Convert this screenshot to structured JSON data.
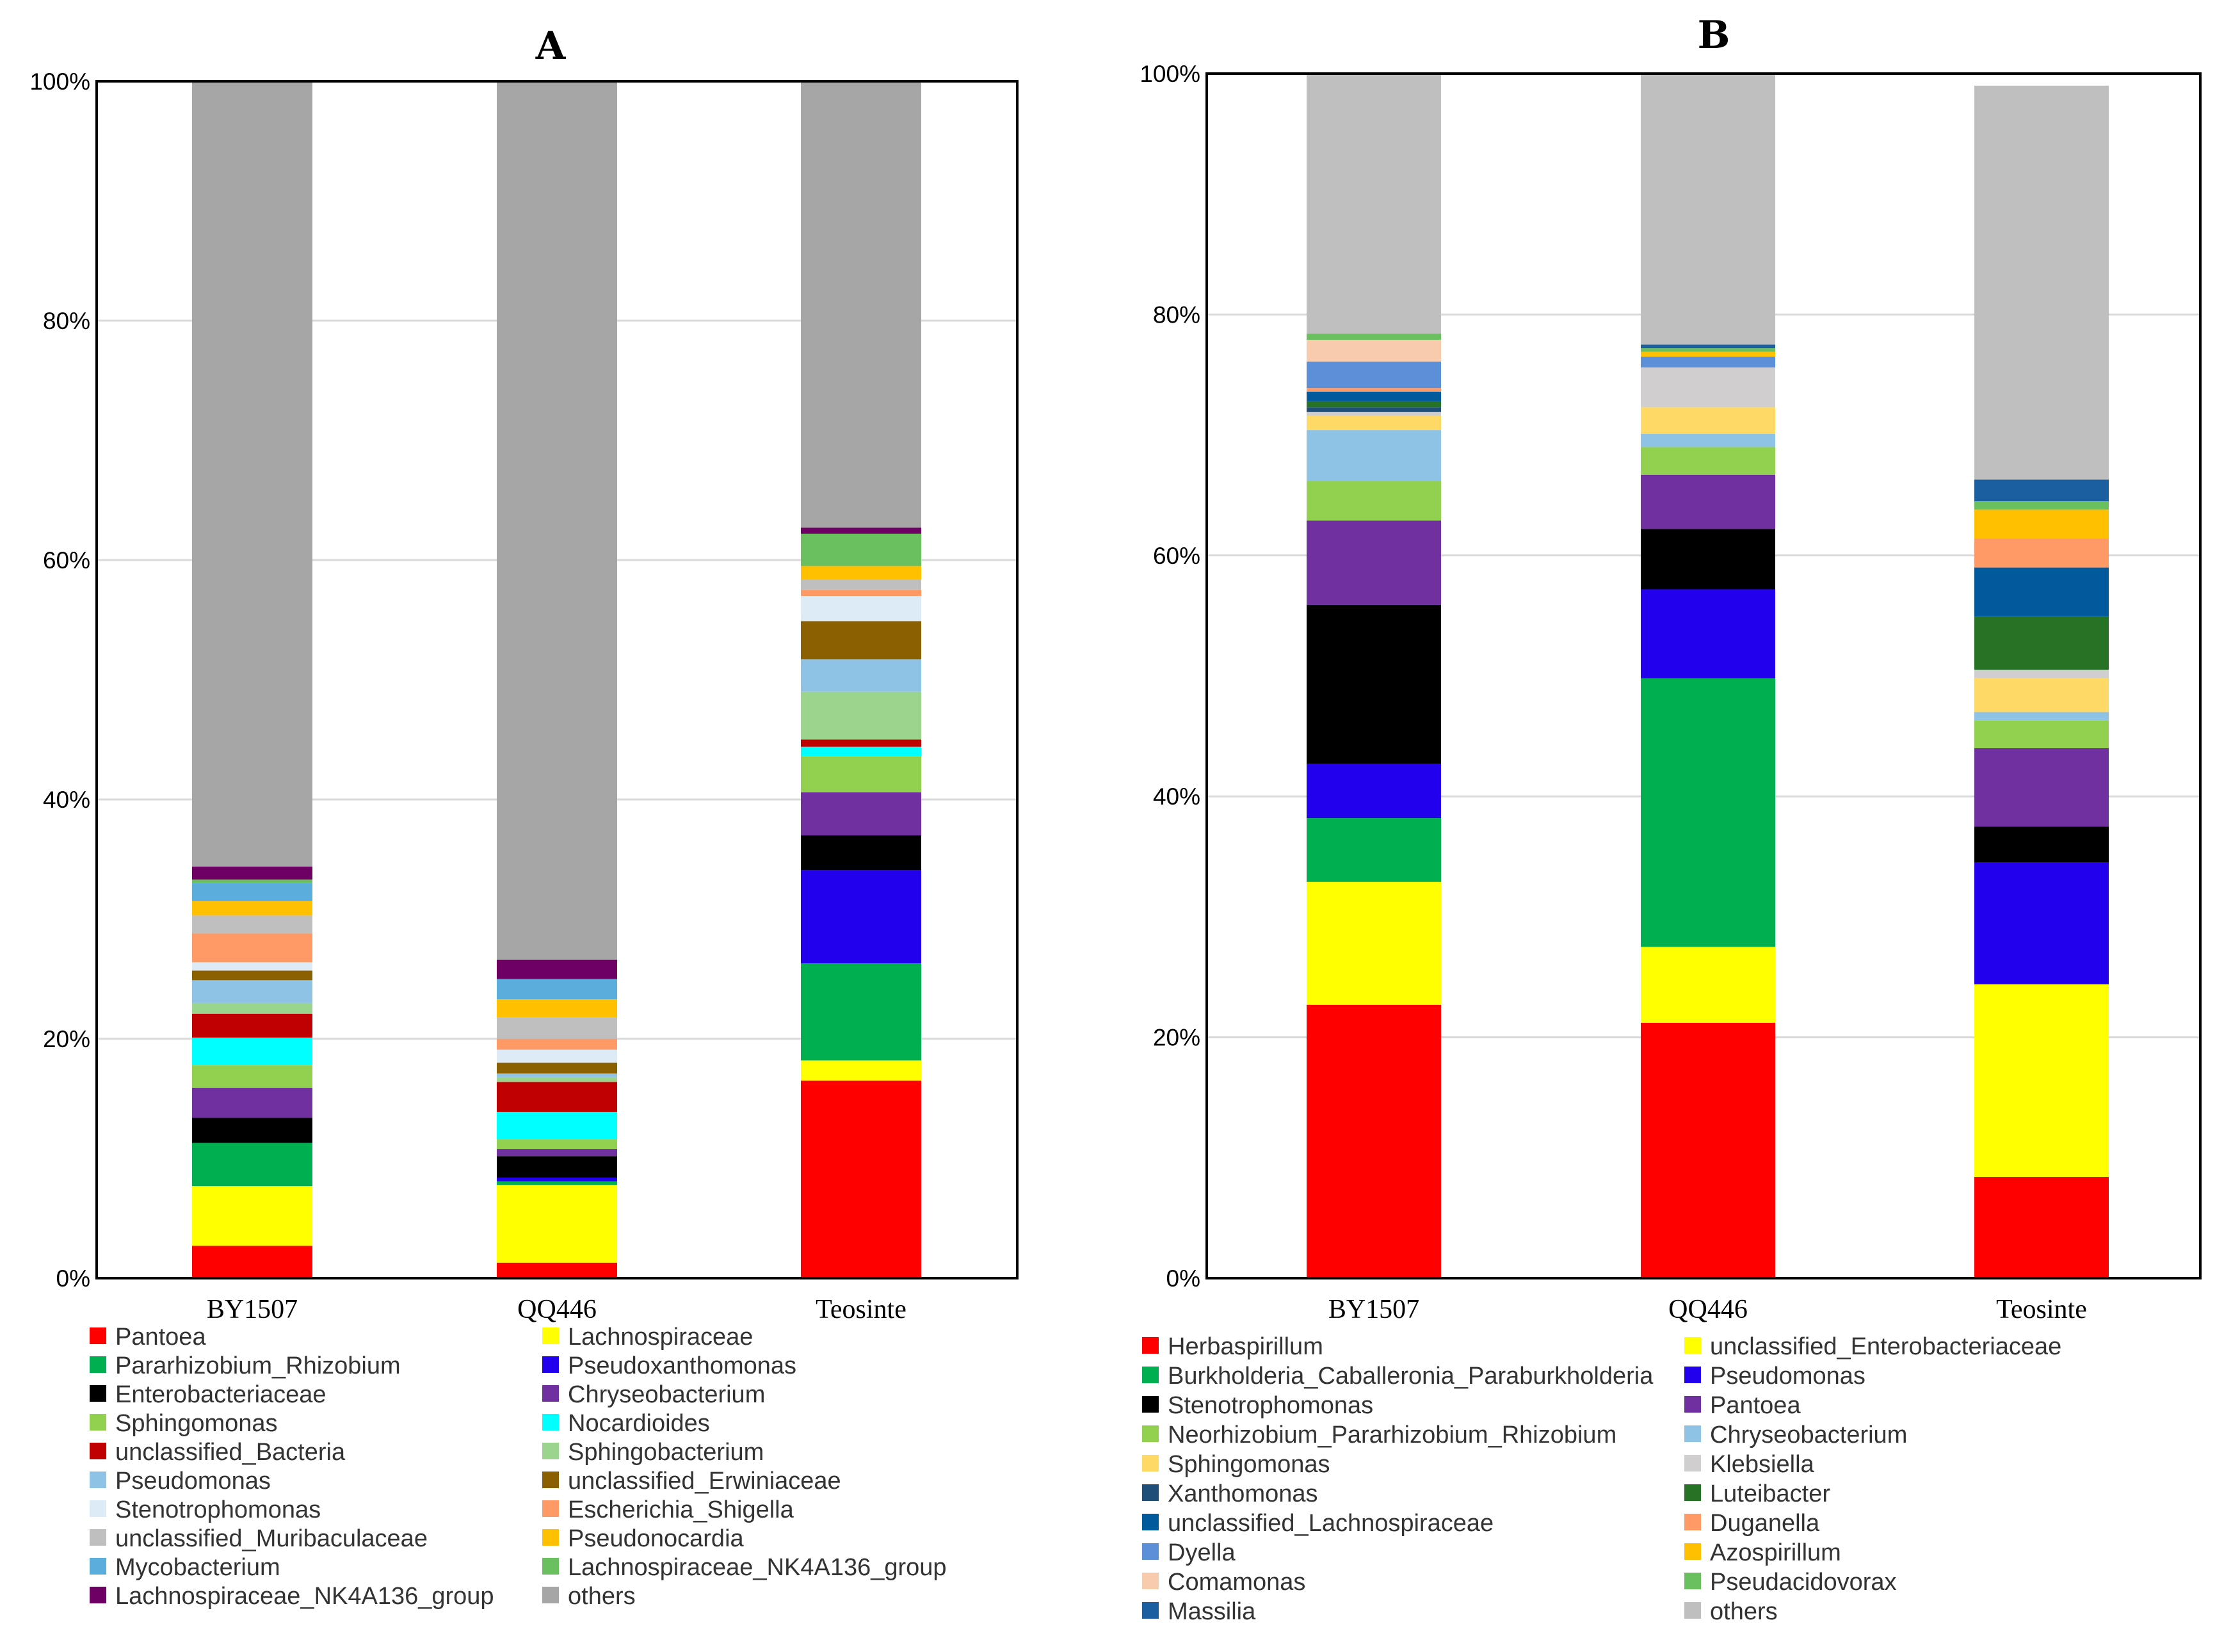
{
  "chart_data": [
    {
      "id": "A",
      "type": "bar",
      "stacked": true,
      "percent": true,
      "title": "A",
      "xlabel": "",
      "ylabel": "",
      "ylim": [
        0,
        100
      ],
      "yticks": [
        "0%",
        "20%",
        "40%",
        "60%",
        "80%",
        "100%"
      ],
      "categories": [
        "BY1507",
        "QQ446",
        "Teosinte"
      ],
      "grid": true,
      "legend_position": "bottom",
      "series": [
        {
          "name": "Pantoea",
          "color": "#FF0000",
          "values": [
            2.7,
            1.3,
            16.5
          ]
        },
        {
          "name": "Lachnospiraceae",
          "color": "#FFFF00",
          "values": [
            5.0,
            6.5,
            1.7
          ]
        },
        {
          "name": "Pararhizobium_Rhizobium",
          "color": "#00B050",
          "values": [
            3.6,
            0.3,
            8.1
          ]
        },
        {
          "name": "Pseudoxanthomonas",
          "color": "#2200EE",
          "values": [
            0.0,
            0.3,
            7.8
          ]
        },
        {
          "name": "Enterobacteriaceae",
          "color": "#000000",
          "values": [
            2.1,
            1.8,
            2.9
          ]
        },
        {
          "name": "Chryseobacterium",
          "color": "#7030A0",
          "values": [
            2.5,
            0.6,
            3.6
          ]
        },
        {
          "name": "Sphingomonas",
          "color": "#92D050",
          "values": [
            1.9,
            0.8,
            3.0
          ]
        },
        {
          "name": "Nocardioides",
          "color": "#00FFFF",
          "values": [
            2.3,
            2.3,
            0.8
          ]
        },
        {
          "name": "unclassified_Bacteria",
          "color": "#C00000",
          "values": [
            2.0,
            2.5,
            0.6
          ]
        },
        {
          "name": "Sphingobacterium",
          "color": "#9BD48C",
          "values": [
            0.9,
            0.4,
            4.0
          ]
        },
        {
          "name": "Pseudomonas",
          "color": "#8EC3E6",
          "values": [
            1.9,
            0.3,
            2.7
          ]
        },
        {
          "name": "unclassified_Erwiniaceae",
          "color": "#8B6000",
          "values": [
            0.8,
            0.9,
            3.2
          ]
        },
        {
          "name": "Stenotrophomonas",
          "color": "#DDEBF7",
          "values": [
            0.7,
            1.1,
            2.1
          ]
        },
        {
          "name": "Escherichia_Shigella",
          "color": "#FF9966",
          "values": [
            2.4,
            0.9,
            0.5
          ]
        },
        {
          "name": "unclassified_Muribaculaceae",
          "color": "#BFBFBF",
          "values": [
            1.5,
            1.8,
            0.9
          ]
        },
        {
          "name": "Pseudonocardia",
          "color": "#FFC000",
          "values": [
            1.2,
            1.5,
            1.1
          ]
        },
        {
          "name": "Mycobacterium",
          "color": "#5BAEDC",
          "values": [
            1.5,
            1.7,
            0.0
          ]
        },
        {
          "name": "Lachnospiraceae_NK4A136_group",
          "color": "#6ABF5E",
          "values": [
            0.3,
            0.0,
            2.7
          ]
        },
        {
          "name": "Lachnospiraceae_NK4A136_group",
          "color": "#6E0063",
          "values": [
            1.1,
            1.6,
            0.5
          ]
        },
        {
          "name": "others",
          "color": "#A6A6A6",
          "values": [
            65.5,
            73.4,
            37.3
          ]
        }
      ]
    },
    {
      "id": "B",
      "type": "bar",
      "stacked": true,
      "percent": true,
      "title": "B",
      "xlabel": "",
      "ylabel": "",
      "ylim": [
        0,
        100
      ],
      "yticks": [
        "0%",
        "20%",
        "40%",
        "60%",
        "80%",
        "100%"
      ],
      "categories": [
        "BY1507",
        "QQ446",
        "Teosinte"
      ],
      "grid": true,
      "legend_position": "bottom",
      "series": [
        {
          "name": "Herbaspirillum",
          "color": "#FF0000",
          "values": [
            22.7,
            21.2,
            8.4
          ]
        },
        {
          "name": "unclassified_Enterobacteriaceae",
          "color": "#FFFF00",
          "values": [
            10.2,
            6.3,
            16.0
          ]
        },
        {
          "name": "Burkholderia_Caballeronia_Paraburkholderia",
          "color": "#00B050",
          "values": [
            5.3,
            22.3,
            0.0
          ]
        },
        {
          "name": "Pseudomonas",
          "color": "#2200EE",
          "values": [
            4.5,
            7.4,
            10.1
          ]
        },
        {
          "name": "Stenotrophomonas",
          "color": "#000000",
          "values": [
            13.2,
            5.0,
            3.0
          ]
        },
        {
          "name": "Pantoea",
          "color": "#7030A0",
          "values": [
            7.0,
            4.5,
            6.5
          ]
        },
        {
          "name": "Neorhizobium_Pararhizobium_Rhizobium",
          "color": "#92D050",
          "values": [
            3.3,
            2.3,
            2.3
          ]
        },
        {
          "name": "Chryseobacterium",
          "color": "#8EC3E6",
          "values": [
            4.2,
            1.1,
            0.7
          ]
        },
        {
          "name": "Sphingomonas",
          "color": "#FFD966",
          "values": [
            1.2,
            2.2,
            2.8
          ]
        },
        {
          "name": "Klebsiella",
          "color": "#D0CECE",
          "values": [
            0.3,
            3.3,
            0.7
          ]
        },
        {
          "name": "Xanthomonas",
          "color": "#1F4E79",
          "values": [
            0.4,
            0.0,
            0.0
          ]
        },
        {
          "name": "Luteibacter",
          "color": "#267326",
          "values": [
            0.5,
            0.0,
            4.4
          ]
        },
        {
          "name": "unclassified_Lachnospiraceae",
          "color": "#005A9C",
          "values": [
            0.8,
            0.0,
            4.1
          ]
        },
        {
          "name": "Duganella",
          "color": "#FF9966",
          "values": [
            0.3,
            0.0,
            2.4
          ]
        },
        {
          "name": "Dyella",
          "color": "#5B8FD8",
          "values": [
            2.2,
            0.9,
            0.0
          ]
        },
        {
          "name": "Azospirillum",
          "color": "#FFC000",
          "values": [
            0.0,
            0.4,
            2.4
          ]
        },
        {
          "name": "Comamonas",
          "color": "#F8CBAD",
          "values": [
            1.8,
            0.0,
            0.0
          ]
        },
        {
          "name": "Pseudacidovorax",
          "color": "#6ABF5E",
          "values": [
            0.5,
            0.3,
            0.7
          ]
        },
        {
          "name": "Massilia",
          "color": "#1B5FA0",
          "values": [
            0.0,
            0.3,
            1.8
          ]
        },
        {
          "name": "others",
          "color": "#BFBFBF",
          "values": [
            21.6,
            22.5,
            32.7
          ]
        }
      ]
    }
  ]
}
